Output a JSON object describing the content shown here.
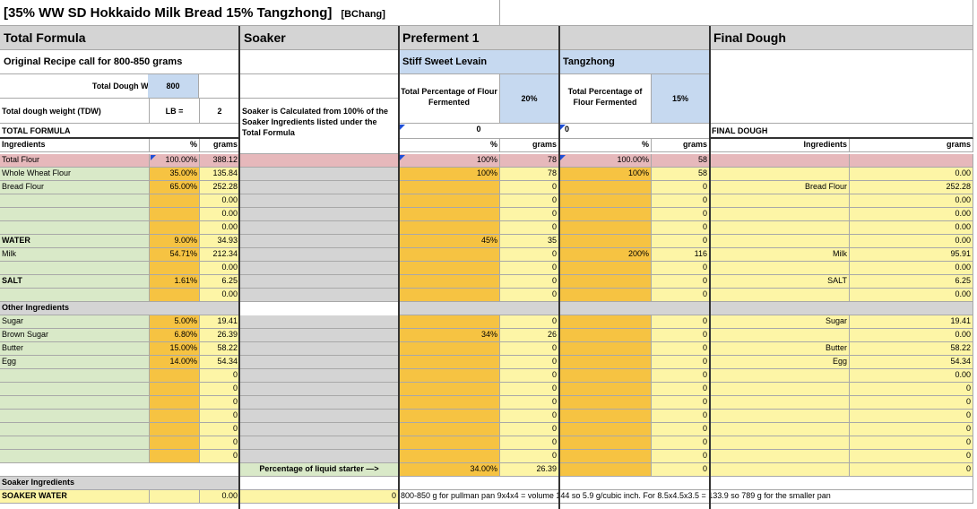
{
  "title": "[35% WW SD Hokkaido Milk Bread 15% Tangzhong]",
  "title_tag": "[BChang]",
  "sections": {
    "total_formula": "Total Formula",
    "soaker": "Soaker",
    "preferment": "Preferment 1",
    "tangzhong_blank": "",
    "final_dough": "Final Dough"
  },
  "original_recipe": "Original Recipe call for 800-850 grams",
  "stiff_levain": "Stiff Sweet Levain",
  "tangzhong": "Tangzhong",
  "tdw_label": "Total Dough Weight (TDW)",
  "tdw_value": "800",
  "tdw_lb_label": "Total dough weight (TDW)",
  "lb_equals": "LB =",
  "lb_value": "2",
  "soaker_note": "Soaker is Calculated from 100% of the Soaker Ingredients listed under the Total Formula",
  "pf_total_pct_label": "Total Percentage of Flour Fermented",
  "pf_total_pct": "20%",
  "tz_total_pct_label": "Total Percentage of Flour Fermented",
  "tz_total_pct": "15%",
  "total_formula_label": "TOTAL FORMULA",
  "pf_zero": "0",
  "tz_zero": "0",
  "final_dough_label": "FINAL DOUGH",
  "col_ingredients": "Ingredients",
  "col_pct": "%",
  "col_grams": "grams",
  "rows": [
    {
      "k": "col",
      "ing": "",
      "tp": "",
      "tg": "",
      "pp": "",
      "pg": "",
      "zp": "",
      "zg": "",
      "fi": "",
      "fg": ""
    },
    {
      "k": "total",
      "ing": "Total Flour",
      "tp": "100.00%",
      "tg": "388.12",
      "pp": "100%",
      "pg": "78",
      "zp": "100.00%",
      "zg": "58",
      "fi": "",
      "fg": ""
    },
    {
      "k": "d",
      "ing": "Whole Wheat Flour",
      "tp": "35.00%",
      "tg": "135.84",
      "pp": "100%",
      "pg": "78",
      "zp": "100%",
      "zg": "58",
      "fi": "",
      "fg": "0.00"
    },
    {
      "k": "d",
      "ing": "Bread Flour",
      "tp": "65.00%",
      "tg": "252.28",
      "pp": "",
      "pg": "0",
      "zp": "",
      "zg": "0",
      "fi": "Bread Flour",
      "fg": "252.28"
    },
    {
      "k": "d",
      "ing": "",
      "tp": "",
      "tg": "0.00",
      "pp": "",
      "pg": "0",
      "zp": "",
      "zg": "0",
      "fi": "",
      "fg": "0.00"
    },
    {
      "k": "d",
      "ing": "",
      "tp": "",
      "tg": "0.00",
      "pp": "",
      "pg": "0",
      "zp": "",
      "zg": "0",
      "fi": "",
      "fg": "0.00"
    },
    {
      "k": "d",
      "ing": "",
      "tp": "",
      "tg": "0.00",
      "pp": "",
      "pg": "0",
      "zp": "",
      "zg": "0",
      "fi": "",
      "fg": "0.00"
    },
    {
      "k": "ds",
      "ing": "WATER",
      "tp": "9.00%",
      "tg": "34.93",
      "pp": "45%",
      "pg": "35",
      "zp": "",
      "zg": "0",
      "fi": "",
      "fg": "0.00"
    },
    {
      "k": "d",
      "ing": "Milk",
      "tp": "54.71%",
      "tg": "212.34",
      "pp": "",
      "pg": "0",
      "zp": "200%",
      "zg": "116",
      "fi": "Milk",
      "fg": "95.91"
    },
    {
      "k": "d",
      "ing": "",
      "tp": "",
      "tg": "0.00",
      "pp": "",
      "pg": "0",
      "zp": "",
      "zg": "0",
      "fi": "",
      "fg": "0.00"
    },
    {
      "k": "ds",
      "ing": "SALT",
      "tp": "1.61%",
      "tg": "6.25",
      "pp": "",
      "pg": "0",
      "zp": "",
      "zg": "0",
      "fi": "SALT",
      "fg": "6.25"
    },
    {
      "k": "d",
      "ing": "",
      "tp": "",
      "tg": "0.00",
      "pp": "",
      "pg": "0",
      "zp": "",
      "zg": "0",
      "fi": "",
      "fg": "0.00"
    },
    {
      "k": "other",
      "ing": "Other Ingredients",
      "tp": "",
      "tg": "",
      "pp": "",
      "pg": "",
      "zp": "",
      "zg": "",
      "fi": "",
      "fg": ""
    },
    {
      "k": "d",
      "ing": "Sugar",
      "tp": "5.00%",
      "tg": "19.41",
      "pp": "",
      "pg": "0",
      "zp": "",
      "zg": "0",
      "fi": "Sugar",
      "fg": "19.41"
    },
    {
      "k": "d",
      "ing": "Brown Sugar",
      "tp": "6.80%",
      "tg": "26.39",
      "pp": "34%",
      "pg": "26",
      "zp": "",
      "zg": "0",
      "fi": "",
      "fg": "0.00"
    },
    {
      "k": "d",
      "ing": "Butter",
      "tp": "15.00%",
      "tg": "58.22",
      "pp": "",
      "pg": "0",
      "zp": "",
      "zg": "0",
      "fi": "Butter",
      "fg": "58.22"
    },
    {
      "k": "d",
      "ing": "Egg",
      "tp": "14.00%",
      "tg": "54.34",
      "pp": "",
      "pg": "0",
      "zp": "",
      "zg": "0",
      "fi": "Egg",
      "fg": "54.34"
    },
    {
      "k": "d",
      "ing": "",
      "tp": "",
      "tg": "0",
      "pp": "",
      "pg": "0",
      "zp": "",
      "zg": "0",
      "fi": "",
      "fg": "0.00"
    },
    {
      "k": "d",
      "ing": "",
      "tp": "",
      "tg": "0",
      "pp": "",
      "pg": "0",
      "zp": "",
      "zg": "0",
      "fi": "",
      "fg": "0"
    },
    {
      "k": "d",
      "ing": "",
      "tp": "",
      "tg": "0",
      "pp": "",
      "pg": "0",
      "zp": "",
      "zg": "0",
      "fi": "",
      "fg": "0"
    },
    {
      "k": "d",
      "ing": "",
      "tp": "",
      "tg": "0",
      "pp": "",
      "pg": "0",
      "zp": "",
      "zg": "0",
      "fi": "",
      "fg": "0"
    },
    {
      "k": "d",
      "ing": "",
      "tp": "",
      "tg": "0",
      "pp": "",
      "pg": "0",
      "zp": "",
      "zg": "0",
      "fi": "",
      "fg": "0"
    },
    {
      "k": "d",
      "ing": "",
      "tp": "",
      "tg": "0",
      "pp": "",
      "pg": "0",
      "zp": "",
      "zg": "0",
      "fi": "",
      "fg": "0"
    },
    {
      "k": "d",
      "ing": "",
      "tp": "",
      "tg": "0",
      "pp": "",
      "pg": "0",
      "zp": "",
      "zg": "0",
      "fi": "",
      "fg": "0"
    },
    {
      "k": "liquid",
      "ing": "",
      "tp": "",
      "tg": "",
      "pp": "34.00%",
      "pg": "26.39",
      "zp": "",
      "zg": "0",
      "fi": "",
      "fg": "0"
    },
    {
      "k": "soakhdr",
      "ing": "Soaker Ingredients",
      "tp": "",
      "tg": "",
      "pp": "",
      "pg": "",
      "zp": "",
      "zg": "",
      "fi": "",
      "fg": ""
    },
    {
      "k": "soakwater",
      "ing": "SOAKER WATER",
      "tp": "",
      "tg": "0.00",
      "pp": "",
      "pg": "",
      "zp": "",
      "zg": "",
      "fi": "",
      "fg": ""
    }
  ],
  "liquid_starter_label": "Percentage of liquid starter —>",
  "soaker_water_value": "0",
  "pan_note": "800-850 g for pullman pan 9x4x4 = volume 144 so 5.9 g/cubic inch.  For 8.5x4.5x3.5 = 133.9 so 789 g for the smaller pan"
}
